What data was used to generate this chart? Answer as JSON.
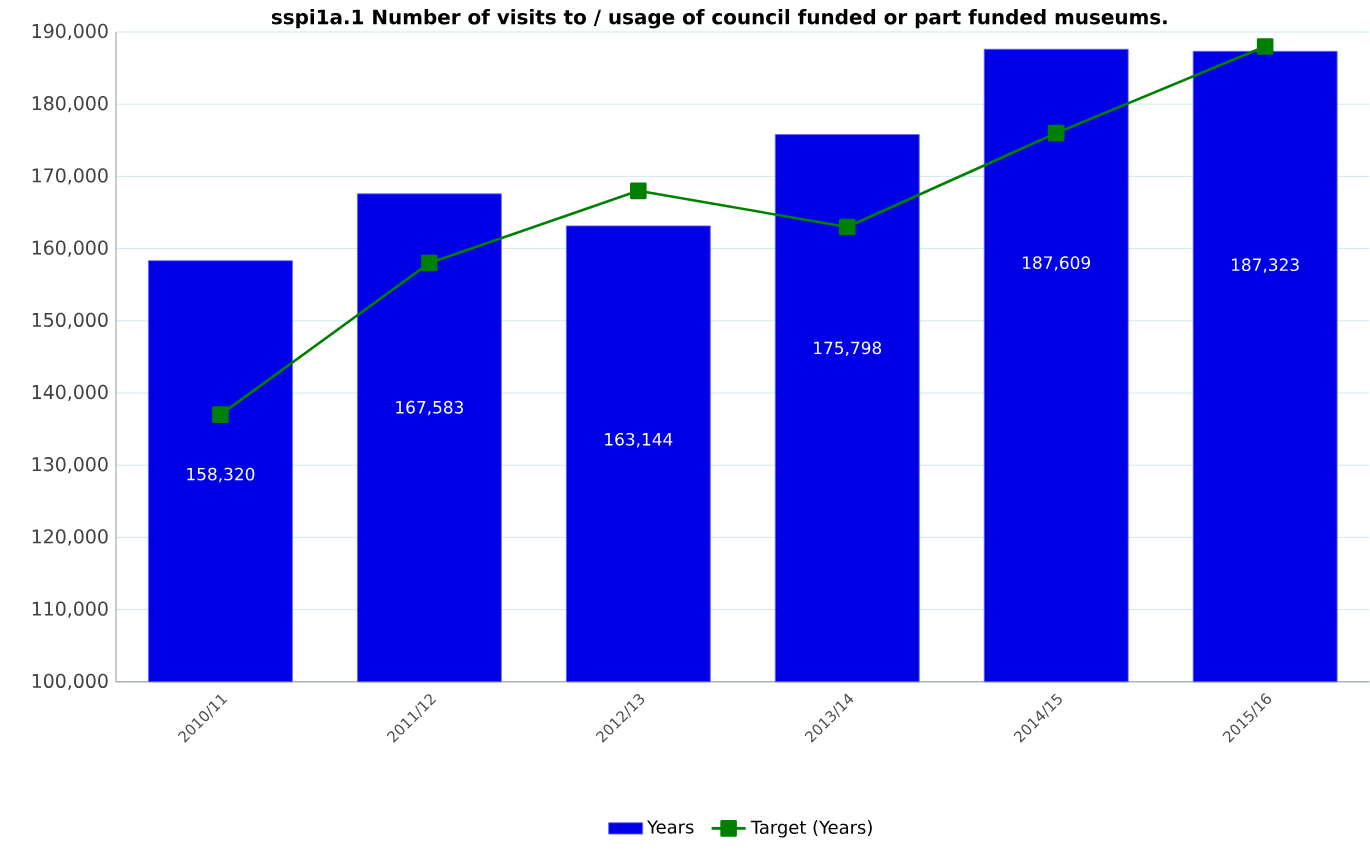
{
  "chart_data": {
    "type": "bar",
    "title": "sspi1a.1 Number of visits to / usage of council funded or part funded museums.",
    "categories": [
      "2010/11",
      "2011/12",
      "2012/13",
      "2013/14",
      "2014/15",
      "2015/16"
    ],
    "series": [
      {
        "name": "Years",
        "color": "#0000e6",
        "values": [
          158320,
          167583,
          163144,
          175798,
          187609,
          187323
        ],
        "value_labels": [
          "158,320",
          "167,583",
          "163,144",
          "175,798",
          "187,609",
          "187,323"
        ]
      },
      {
        "name": "Target (Years)",
        "type": "line",
        "color": "#008000",
        "marker": "square",
        "values": [
          137000,
          158000,
          168000,
          163000,
          176000,
          188000
        ]
      }
    ],
    "ylim": [
      100000,
      190000
    ],
    "yticks": [
      {
        "value": 100000,
        "label": "100,000"
      },
      {
        "value": 110000,
        "label": "110,000"
      },
      {
        "value": 120000,
        "label": "120,000"
      },
      {
        "value": 130000,
        "label": "130,000"
      },
      {
        "value": 140000,
        "label": "140,000"
      },
      {
        "value": 150000,
        "label": "150,000"
      },
      {
        "value": 160000,
        "label": "160,000"
      },
      {
        "value": 170000,
        "label": "170,000"
      },
      {
        "value": 180000,
        "label": "180,000"
      },
      {
        "value": 190000,
        "label": "190,000"
      }
    ],
    "grid": "y",
    "legend": "bottom"
  }
}
